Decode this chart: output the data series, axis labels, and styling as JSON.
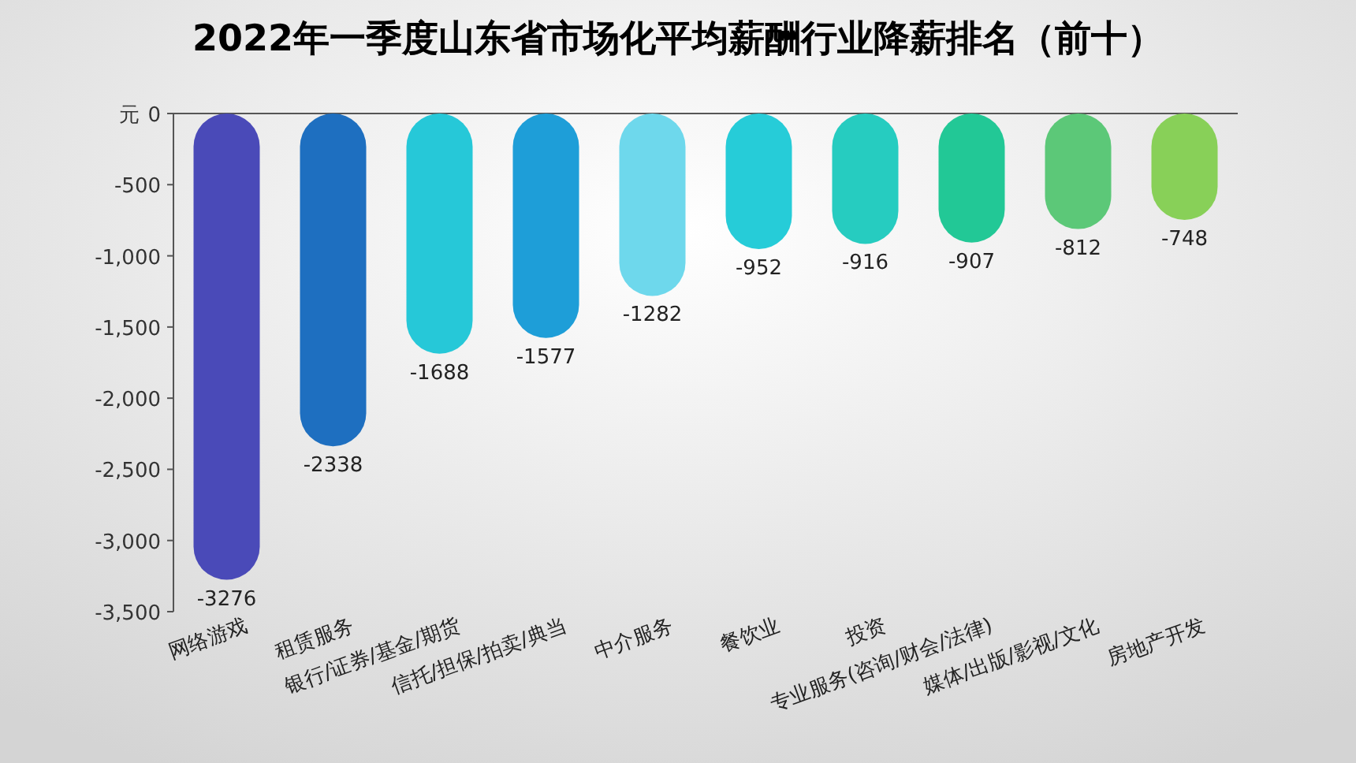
{
  "chart_data": {
    "type": "bar",
    "title": "2022年一季度山东省市场化平均薪酬行业降薪排名（前十）",
    "ylabel": "元",
    "categories": [
      "网络游戏",
      "租赁服务",
      "银行/证券/基金/期货",
      "信托/担保/拍卖/典当",
      "中介服务",
      "餐饮业",
      "投资",
      "专业服务(咨询/财会/法律)",
      "媒体/出版/影视/文化",
      "房地产开发"
    ],
    "values": [
      -3276,
      -2338,
      -1688,
      -1577,
      -1282,
      -952,
      -916,
      -907,
      -812,
      -748
    ],
    "colors": [
      "#4a4ab8",
      "#1e6fc0",
      "#26c8d8",
      "#1e9ed8",
      "#6ed8ec",
      "#26ccd8",
      "#26ccc0",
      "#22c896",
      "#5cc878",
      "#88d058"
    ],
    "ylim": [
      -3500,
      0
    ],
    "yticks": [
      {
        "value": 0,
        "label": "0"
      },
      {
        "value": -500,
        "label": "-500"
      },
      {
        "value": -1000,
        "label": "-1,000"
      },
      {
        "value": -1500,
        "label": "-1,500"
      },
      {
        "value": -2000,
        "label": "-2,000"
      },
      {
        "value": -2500,
        "label": "-2,500"
      },
      {
        "value": -3000,
        "label": "-3,000"
      },
      {
        "value": -3500,
        "label": "-3,500"
      }
    ],
    "data_labels": true
  }
}
